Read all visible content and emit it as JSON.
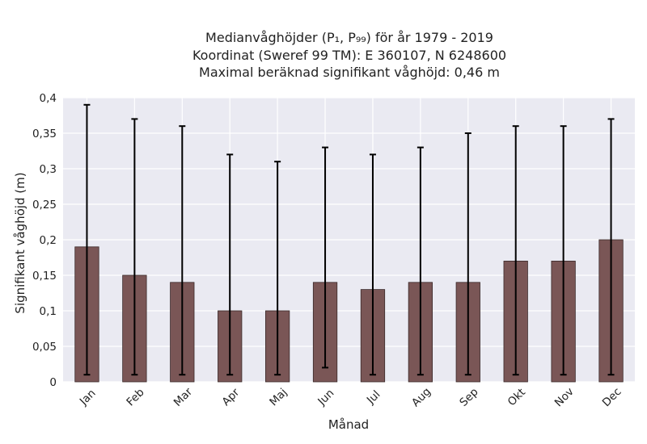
{
  "chart_data": {
    "type": "bar",
    "title": "Medianvåghöjder (P₁, P₉₉) för år 1979 - 2019",
    "subtitle": [
      "Koordinat (Sweref 99 TM): E 360107, N 6248600",
      "Maximal beräknad signifikant våghöjd: 0,46 m"
    ],
    "xlabel": "Månad",
    "ylabel": "Signifikant våghöjd (m)",
    "categories": [
      "Jan",
      "Feb",
      "Mar",
      "Apr",
      "Maj",
      "Jun",
      "Jul",
      "Aug",
      "Sep",
      "Okt",
      "Nov",
      "Dec"
    ],
    "values": [
      0.19,
      0.15,
      0.14,
      0.1,
      0.1,
      0.14,
      0.13,
      0.14,
      0.14,
      0.17,
      0.17,
      0.2
    ],
    "error_low": [
      0.01,
      0.01,
      0.01,
      0.01,
      0.01,
      0.02,
      0.01,
      0.01,
      0.01,
      0.01,
      0.01,
      0.01
    ],
    "error_high": [
      0.39,
      0.37,
      0.36,
      0.32,
      0.31,
      0.33,
      0.32,
      0.33,
      0.35,
      0.36,
      0.36,
      0.37
    ],
    "ylim": [
      0,
      0.4
    ],
    "yticks": [
      0,
      0.05,
      0.1,
      0.15,
      0.2,
      0.25,
      0.3,
      0.35,
      0.4
    ],
    "ytick_labels": [
      "0",
      "0,05",
      "0,1",
      "0,15",
      "0,2",
      "0,25",
      "0,3",
      "0,35",
      "0,4"
    ],
    "grid": true,
    "colors": {
      "bar": "#7a5656",
      "bar_edge": "#3a2a2a",
      "error": "#000000",
      "background": "#eaeaf2",
      "grid": "#ffffff"
    }
  }
}
